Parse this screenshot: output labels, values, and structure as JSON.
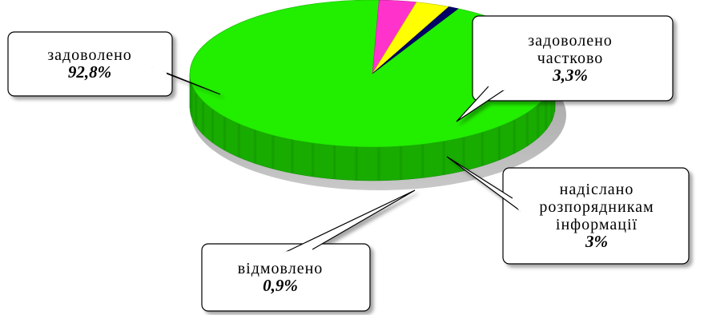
{
  "chart_data": {
    "type": "pie",
    "style": "3d",
    "slices": [
      {
        "label": "задоволено",
        "value": 92.8,
        "value_label": "92,8%",
        "color": "#22ee00"
      },
      {
        "label": "задоволено частково",
        "value": 3.3,
        "value_label": "3,3%",
        "color": "#ff33cc"
      },
      {
        "label": "надіслано розпорядникам інформації",
        "value": 3,
        "value_label": "3%",
        "color": "#ffff00"
      },
      {
        "label": "відмовлено",
        "value": 0.9,
        "value_label": "0,9%",
        "color": "#000066"
      }
    ],
    "legend": "none",
    "grid": false
  }
}
